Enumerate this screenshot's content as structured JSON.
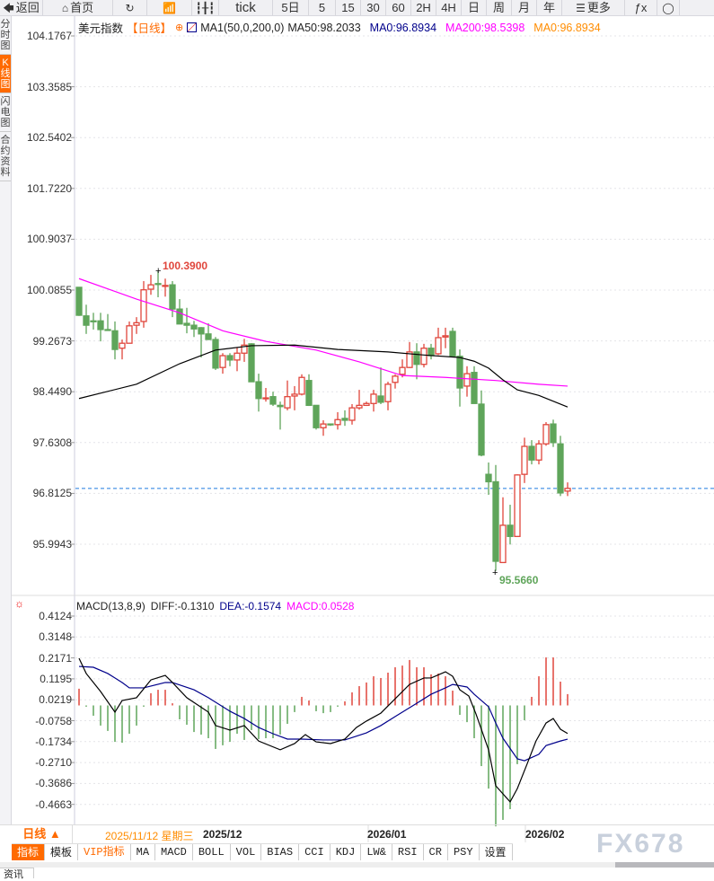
{
  "toolbar": {
    "items": [
      {
        "icon": "back-arrow-icon",
        "label": "返回"
      },
      {
        "icon": "home-icon",
        "label": "首页"
      },
      {
        "icon": "refresh-icon",
        "label": ""
      },
      {
        "icon": "bar-chart-icon",
        "label": ""
      },
      {
        "icon": "candlestick-icon",
        "label": ""
      },
      {
        "icon": "",
        "label": "tick"
      },
      {
        "icon": "",
        "label": "5日"
      },
      {
        "icon": "",
        "label": "5"
      },
      {
        "icon": "",
        "label": "15"
      },
      {
        "icon": "",
        "label": "30"
      },
      {
        "icon": "",
        "label": "60"
      },
      {
        "icon": "",
        "label": "2H"
      },
      {
        "icon": "",
        "label": "4H"
      },
      {
        "icon": "",
        "label": "日"
      },
      {
        "icon": "",
        "label": "周"
      },
      {
        "icon": "",
        "label": "月"
      },
      {
        "icon": "",
        "label": "年"
      },
      {
        "icon": "menu-icon",
        "label": "更多"
      },
      {
        "icon": "function-icon",
        "label": "ƒx"
      },
      {
        "icon": "circle-icon",
        "label": ""
      }
    ]
  },
  "sidebar": {
    "items": [
      {
        "label": "分时图",
        "active": false
      },
      {
        "label": "K线图",
        "active": true
      },
      {
        "label": "闪电图",
        "active": false
      },
      {
        "label": "合约资料",
        "active": false
      }
    ]
  },
  "legend": {
    "symbol": "美元指数",
    "period": "【日线】",
    "indicator": "MA1(50,0,200,0)",
    "ma50": "MA50:98.2033",
    "ma0a": "MA0:96.8934",
    "ma200": "MA200:98.5398",
    "ma0b": "MA0:96.8934"
  },
  "colors": {
    "up": "#e0463c",
    "down": "#5fa55a",
    "ma50": "#000000",
    "ma200": "#ff00ff",
    "dea": "#00008b",
    "last_price_line": "#1e7be0",
    "accent": "#ff6a00"
  },
  "price_axis": {
    "ticks": [
      "104.1767",
      "103.3585",
      "102.5402",
      "101.7220",
      "100.9037",
      "100.0855",
      "99.2673",
      "98.4490",
      "97.6308",
      "96.8125",
      "95.9943"
    ]
  },
  "macd_axis": {
    "ticks": [
      "0.4124",
      "0.3148",
      "0.2171",
      "0.1195",
      "0.0219",
      "-0.0758",
      "-0.1734",
      "-0.2710",
      "-0.3686",
      "-0.4663"
    ]
  },
  "annotations": {
    "high": "100.3900",
    "low": "95.5660",
    "last_price": 96.8934
  },
  "macd_legend": {
    "name": "MACD(13,8,9)",
    "diff": "DIFF:-0.1310",
    "dea": "DEA:-0.1574",
    "macd": "MACD:0.0528"
  },
  "date_axis": {
    "selector": "日线 ▲",
    "cursor_date": "2025/11/12 星期三",
    "labels": [
      "2025/12",
      "2026/01",
      "2026/02"
    ]
  },
  "bottom_tabs": [
    "指标",
    "模板",
    "VIP指标",
    "MA",
    "MACD",
    "BOLL",
    "VOL",
    "BIAS",
    "CCI",
    "KDJ",
    "LW&",
    "RSI",
    "CR",
    "PSY",
    "设置"
  ],
  "news_tab": "资讯",
  "watermark": "FX678",
  "chart_data": {
    "type": "candlestick",
    "ohlc": [
      [
        100.13,
        100.13,
        99.67,
        99.68
      ],
      [
        99.67,
        99.85,
        99.38,
        99.52
      ],
      [
        99.59,
        99.72,
        99.45,
        99.59
      ],
      [
        99.59,
        99.72,
        99.26,
        99.45
      ],
      [
        99.45,
        99.7,
        99.43,
        99.45
      ],
      [
        99.43,
        99.58,
        98.97,
        99.13
      ],
      [
        99.15,
        99.29,
        98.97,
        99.23
      ],
      [
        99.23,
        99.58,
        99.23,
        99.51
      ],
      [
        99.52,
        99.65,
        99.38,
        99.56
      ],
      [
        99.58,
        100.23,
        99.48,
        100.09
      ],
      [
        100.1,
        100.33,
        100.01,
        100.17
      ],
      [
        100.19,
        100.39,
        99.97,
        100.18
      ],
      [
        100.15,
        100.27,
        99.98,
        100.16
      ],
      [
        100.17,
        100.23,
        99.65,
        99.78
      ],
      [
        99.78,
        99.94,
        99.54,
        99.54
      ],
      [
        99.55,
        99.8,
        99.39,
        99.52
      ],
      [
        99.52,
        99.59,
        99.33,
        99.46
      ],
      [
        99.48,
        99.49,
        99.0,
        99.38
      ],
      [
        99.38,
        99.55,
        99.29,
        99.29
      ],
      [
        99.29,
        99.33,
        98.8,
        98.83
      ],
      [
        98.84,
        99.07,
        98.74,
        99.03
      ],
      [
        99.03,
        99.07,
        98.86,
        98.96
      ],
      [
        98.96,
        99.16,
        98.78,
        99.07
      ],
      [
        99.07,
        99.3,
        98.93,
        99.2
      ],
      [
        99.22,
        99.23,
        98.61,
        98.61
      ],
      [
        98.61,
        98.74,
        98.13,
        98.34
      ],
      [
        98.34,
        98.51,
        98.29,
        98.35
      ],
      [
        98.37,
        98.45,
        98.22,
        98.25
      ],
      [
        98.23,
        98.29,
        97.84,
        98.21
      ],
      [
        98.19,
        98.63,
        98.15,
        98.37
      ],
      [
        98.38,
        98.54,
        98.15,
        98.41
      ],
      [
        98.41,
        98.73,
        98.39,
        98.68
      ],
      [
        98.63,
        98.73,
        98.22,
        98.23
      ],
      [
        98.23,
        98.23,
        97.84,
        97.87
      ],
      [
        97.87,
        97.99,
        97.74,
        97.93
      ],
      [
        97.93,
        97.93,
        97.9,
        97.92
      ],
      [
        97.92,
        98.12,
        97.84,
        98.0
      ],
      [
        98.02,
        98.15,
        97.9,
        97.99
      ],
      [
        97.99,
        98.25,
        97.92,
        98.19
      ],
      [
        98.19,
        98.48,
        98.16,
        98.23
      ],
      [
        98.23,
        98.29,
        98.22,
        98.26
      ],
      [
        98.26,
        98.48,
        98.13,
        98.41
      ],
      [
        98.38,
        98.84,
        98.25,
        98.28
      ],
      [
        98.29,
        98.61,
        98.15,
        98.57
      ],
      [
        98.6,
        98.73,
        98.5,
        98.7
      ],
      [
        98.73,
        98.97,
        98.68,
        98.84
      ],
      [
        98.84,
        99.25,
        98.83,
        99.09
      ],
      [
        99.09,
        99.23,
        98.65,
        98.89
      ],
      [
        98.89,
        99.22,
        98.84,
        99.15
      ],
      [
        99.15,
        99.22,
        98.97,
        99.03
      ],
      [
        99.06,
        99.48,
        99.04,
        99.32
      ],
      [
        99.33,
        99.48,
        99.15,
        99.35
      ],
      [
        99.42,
        99.48,
        99.02,
        99.02
      ],
      [
        99.02,
        99.13,
        98.21,
        98.51
      ],
      [
        98.54,
        98.86,
        98.37,
        98.74
      ],
      [
        98.76,
        98.86,
        98.26,
        98.26
      ],
      [
        98.25,
        98.47,
        97.41,
        97.43
      ],
      [
        97.12,
        97.31,
        96.79,
        97.0
      ],
      [
        97.0,
        97.27,
        95.566,
        95.72
      ],
      [
        95.7,
        96.75,
        95.7,
        96.3
      ],
      [
        96.3,
        96.63,
        95.99,
        96.12
      ],
      [
        96.12,
        97.12,
        96.11,
        97.11
      ],
      [
        97.12,
        97.71,
        96.98,
        97.57
      ],
      [
        97.57,
        97.67,
        97.28,
        97.35
      ],
      [
        97.35,
        97.67,
        97.28,
        97.61
      ],
      [
        97.61,
        97.96,
        97.58,
        97.92
      ],
      [
        97.93,
        98.0,
        97.56,
        97.63
      ],
      [
        97.61,
        97.74,
        96.77,
        96.82
      ],
      [
        96.85,
        96.99,
        96.77,
        96.8934
      ]
    ],
    "ma50": [
      [
        0,
        98.34
      ],
      [
        8,
        98.57
      ],
      [
        14,
        98.9
      ],
      [
        19,
        99.12
      ],
      [
        24,
        99.19
      ],
      [
        30,
        99.2
      ],
      [
        36,
        99.13
      ],
      [
        43,
        99.09
      ],
      [
        48,
        99.04
      ],
      [
        53,
        99.0
      ],
      [
        55,
        98.94
      ],
      [
        57,
        98.83
      ],
      [
        59,
        98.64
      ],
      [
        61,
        98.48
      ],
      [
        64,
        98.39
      ],
      [
        68,
        98.2033
      ]
    ],
    "ma200": [
      [
        0,
        100.27
      ],
      [
        8,
        99.94
      ],
      [
        14,
        99.72
      ],
      [
        20,
        99.43
      ],
      [
        26,
        99.26
      ],
      [
        33,
        99.12
      ],
      [
        39,
        98.93
      ],
      [
        45,
        98.71
      ],
      [
        51,
        98.68
      ],
      [
        58,
        98.63
      ],
      [
        64,
        98.57
      ],
      [
        68,
        98.5398
      ]
    ],
    "macd_hist": [
      0.078,
      -0.006,
      -0.048,
      -0.094,
      -0.119,
      -0.17,
      -0.174,
      -0.132,
      -0.094,
      -0.006,
      0.057,
      0.073,
      0.073,
      0.01,
      -0.065,
      -0.09,
      -0.124,
      -0.136,
      -0.153,
      -0.203,
      -0.186,
      -0.17,
      -0.132,
      -0.161,
      -0.115,
      -0.157,
      -0.153,
      -0.153,
      -0.136,
      -0.086,
      -0.031,
      0.04,
      0.023,
      -0.027,
      -0.036,
      -0.031,
      -0.006,
      0.019,
      0.061,
      0.09,
      0.107,
      0.136,
      0.128,
      0.153,
      0.178,
      0.186,
      0.212,
      0.178,
      0.178,
      0.145,
      0.149,
      0.136,
      0.069,
      -0.044,
      -0.078,
      -0.153,
      -0.283,
      -0.388,
      -0.564,
      -0.534,
      -0.484,
      -0.274,
      -0.069,
      0.04,
      0.136,
      0.224,
      0.224,
      0.111,
      0.0528
    ],
    "diff": [
      [
        0,
        0.22
      ],
      [
        1,
        0.149
      ],
      [
        3,
        0.065
      ],
      [
        5,
        -0.031
      ],
      [
        6,
        0.023
      ],
      [
        8,
        0.036
      ],
      [
        10,
        0.119
      ],
      [
        12,
        0.14
      ],
      [
        13,
        0.107
      ],
      [
        15,
        0.036
      ],
      [
        18,
        -0.031
      ],
      [
        19,
        -0.094
      ],
      [
        21,
        -0.115
      ],
      [
        23,
        -0.094
      ],
      [
        25,
        -0.166
      ],
      [
        28,
        -0.207
      ],
      [
        30,
        -0.178
      ],
      [
        31.5,
        -0.136
      ],
      [
        33,
        -0.17
      ],
      [
        35,
        -0.178
      ],
      [
        37,
        -0.157
      ],
      [
        38.6,
        -0.103
      ],
      [
        40,
        -0.073
      ],
      [
        42,
        -0.036
      ],
      [
        44,
        0.031
      ],
      [
        46,
        0.098
      ],
      [
        48,
        0.128
      ],
      [
        49,
        0.128
      ],
      [
        51,
        0.157
      ],
      [
        52,
        0.136
      ],
      [
        53,
        0.073
      ],
      [
        54.25,
        0.044
      ],
      [
        55.25,
        -0.04
      ],
      [
        57,
        -0.207
      ],
      [
        58,
        -0.375
      ],
      [
        60,
        -0.45
      ],
      [
        61,
        -0.388
      ],
      [
        62.4,
        -0.27
      ],
      [
        63.6,
        -0.166
      ],
      [
        65,
        -0.082
      ],
      [
        66,
        -0.061
      ],
      [
        67,
        -0.111
      ],
      [
        68,
        -0.131
      ]
    ],
    "dea": [
      [
        0,
        0.182
      ],
      [
        2,
        0.178
      ],
      [
        4,
        0.149
      ],
      [
        6,
        0.107
      ],
      [
        7,
        0.082
      ],
      [
        9,
        0.082
      ],
      [
        12,
        0.107
      ],
      [
        13,
        0.107
      ],
      [
        16,
        0.073
      ],
      [
        18,
        0.036
      ],
      [
        21,
        -0.027
      ],
      [
        23,
        -0.061
      ],
      [
        25,
        -0.103
      ],
      [
        27,
        -0.132
      ],
      [
        29,
        -0.157
      ],
      [
        31,
        -0.157
      ],
      [
        34,
        -0.161
      ],
      [
        37,
        -0.161
      ],
      [
        40,
        -0.128
      ],
      [
        42,
        -0.094
      ],
      [
        44,
        -0.052
      ],
      [
        47,
        0.01
      ],
      [
        49,
        0.052
      ],
      [
        51,
        0.082
      ],
      [
        52,
        0.098
      ],
      [
        54,
        0.086
      ],
      [
        55,
        0.052
      ],
      [
        57,
        -0.006
      ],
      [
        58,
        -0.082
      ],
      [
        59,
        -0.153
      ],
      [
        61,
        -0.249
      ],
      [
        62,
        -0.258
      ],
      [
        64,
        -0.228
      ],
      [
        65,
        -0.187
      ],
      [
        67,
        -0.166
      ],
      [
        68,
        -0.1574
      ]
    ],
    "price_range": [
      95.9943,
      104.1767
    ],
    "grid": true
  }
}
